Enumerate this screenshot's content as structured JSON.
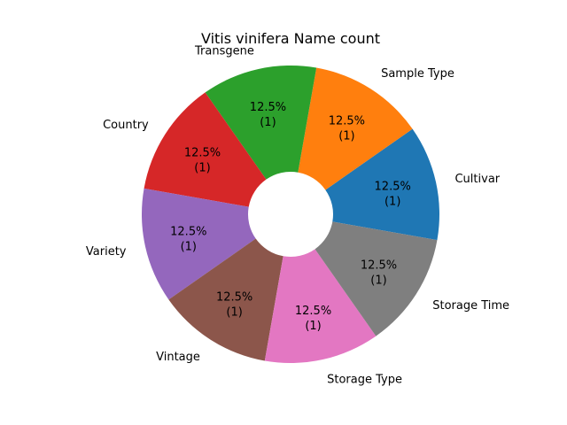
{
  "chart_data": {
    "type": "pie",
    "title": "Vitis vinifera Name count",
    "donut": true,
    "start_angle_deg": -10,
    "slices": [
      {
        "label": "Cultivar",
        "value": 1,
        "percent_text": "12.5%",
        "count_text": "(1)",
        "color": "#1f77b4"
      },
      {
        "label": "Sample Type",
        "value": 1,
        "percent_text": "12.5%",
        "count_text": "(1)",
        "color": "#ff7f0e"
      },
      {
        "label": "Transgene",
        "value": 1,
        "percent_text": "12.5%",
        "count_text": "(1)",
        "color": "#2ca02c"
      },
      {
        "label": "Country",
        "value": 1,
        "percent_text": "12.5%",
        "count_text": "(1)",
        "color": "#d62728"
      },
      {
        "label": "Variety",
        "value": 1,
        "percent_text": "12.5%",
        "count_text": "(1)",
        "color": "#9467bd"
      },
      {
        "label": "Vintage",
        "value": 1,
        "percent_text": "12.5%",
        "count_text": "(1)",
        "color": "#8c564b"
      },
      {
        "label": "Storage Type",
        "value": 1,
        "percent_text": "12.5%",
        "count_text": "(1)",
        "color": "#e377c2"
      },
      {
        "label": "Storage Time",
        "value": 1,
        "percent_text": "12.5%",
        "count_text": "(1)",
        "color": "#7f7f7f"
      }
    ]
  }
}
